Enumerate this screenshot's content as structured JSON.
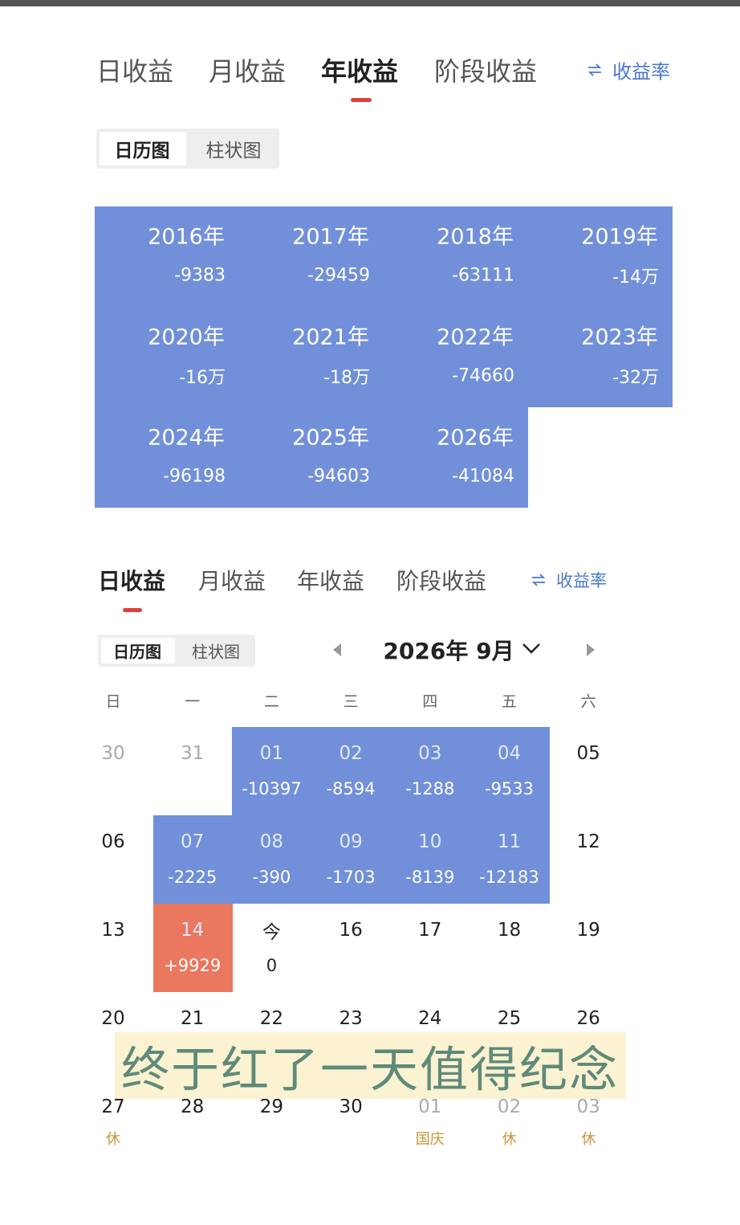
{
  "top_tabs": {
    "items": [
      "日收益",
      "月收益",
      "年收益",
      "阶段收益"
    ],
    "active": 2,
    "toggle": "收益率"
  },
  "top_view": {
    "items": [
      "日历图",
      "柱状图"
    ],
    "active": 0
  },
  "years": {
    "fill": "#7190d9",
    "cells": [
      {
        "year": "2016年",
        "value": "-9383"
      },
      {
        "year": "2017年",
        "value": "-29459"
      },
      {
        "year": "2018年",
        "value": "-63111"
      },
      {
        "year": "2019年",
        "value": "-14万"
      },
      {
        "year": "2020年",
        "value": "-16万"
      },
      {
        "year": "2021年",
        "value": "-18万"
      },
      {
        "year": "2022年",
        "value": "-74660"
      },
      {
        "year": "2023年",
        "value": "-32万"
      },
      {
        "year": "2024年",
        "value": "-96198"
      },
      {
        "year": "2025年",
        "value": "-94603"
      },
      {
        "year": "2026年",
        "value": "-41084"
      }
    ]
  },
  "bottom_tabs": {
    "items": [
      "日收益",
      "月收益",
      "年收益",
      "阶段收益"
    ],
    "active": 0,
    "toggle": "收益率"
  },
  "bottom_view": {
    "items": [
      "日历图",
      "柱状图"
    ],
    "active": 0
  },
  "calendar": {
    "month": "2026年 9月",
    "weekdays": [
      "日",
      "一",
      "二",
      "三",
      "四",
      "五",
      "六"
    ],
    "weeks": [
      [
        {
          "day": "30",
          "muted": true
        },
        {
          "day": "31",
          "muted": true
        },
        {
          "day": "01",
          "value": "-10397",
          "fill": "#7190d9"
        },
        {
          "day": "02",
          "value": "-8594",
          "fill": "#7190d9"
        },
        {
          "day": "03",
          "value": "-1288",
          "fill": "#7190d9"
        },
        {
          "day": "04",
          "value": "-9533",
          "fill": "#7190d9"
        },
        {
          "day": "05"
        }
      ],
      [
        {
          "day": "06"
        },
        {
          "day": "07",
          "value": "-2225",
          "fill": "#7190d9"
        },
        {
          "day": "08",
          "value": "-390",
          "fill": "#7190d9"
        },
        {
          "day": "09",
          "value": "-1703",
          "fill": "#7190d9"
        },
        {
          "day": "10",
          "value": "-8139",
          "fill": "#7190d9"
        },
        {
          "day": "11",
          "value": "-12183",
          "fill": "#7190d9"
        },
        {
          "day": "12"
        }
      ],
      [
        {
          "day": "13"
        },
        {
          "day": "14",
          "value": "+9929",
          "fill": "#e9785f"
        },
        {
          "day": "今",
          "value": "0"
        },
        {
          "day": "16"
        },
        {
          "day": "17"
        },
        {
          "day": "18"
        },
        {
          "day": "19"
        }
      ],
      [
        {
          "day": "20"
        },
        {
          "day": "21"
        },
        {
          "day": "22"
        },
        {
          "day": "23"
        },
        {
          "day": "24"
        },
        {
          "day": "25"
        },
        {
          "day": "26"
        }
      ],
      [
        {
          "day": "27",
          "note": "休"
        },
        {
          "day": "28"
        },
        {
          "day": "29"
        },
        {
          "day": "30"
        },
        {
          "day": "01",
          "muted": true,
          "note": "国庆"
        },
        {
          "day": "02",
          "muted": true,
          "note": "休"
        },
        {
          "day": "03",
          "muted": true,
          "note": "休"
        }
      ]
    ]
  },
  "caption": "终于红了一天值得纪念"
}
